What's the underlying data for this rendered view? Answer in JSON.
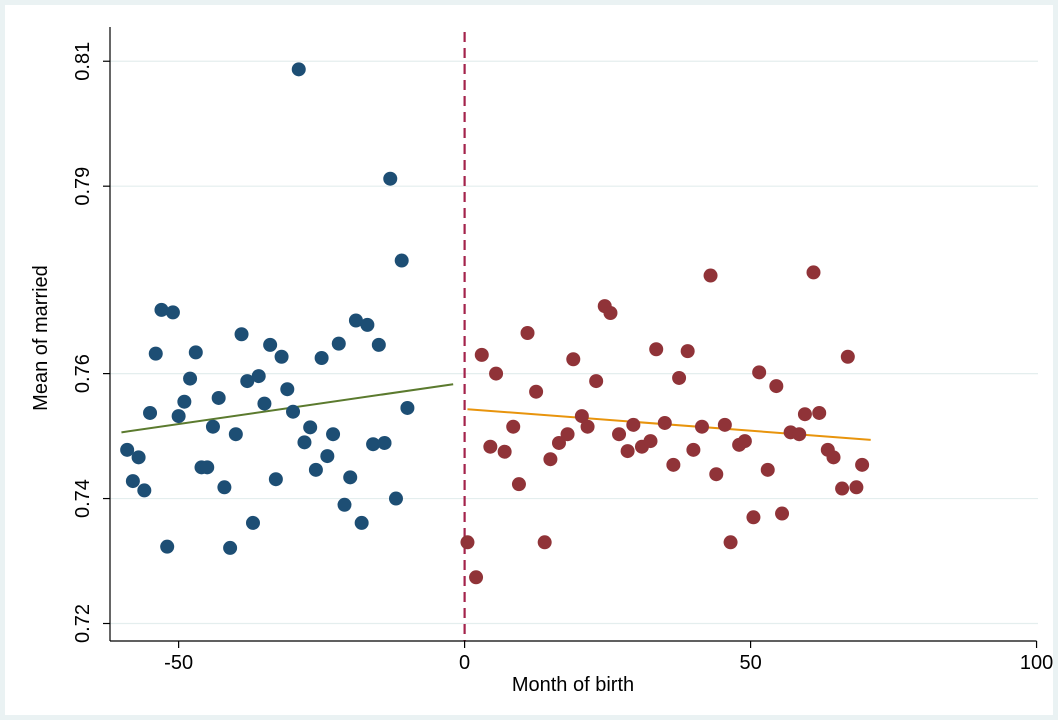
{
  "chart_data": {
    "type": "scatter",
    "title": "",
    "xlabel": "Month of birth",
    "ylabel": "Mean of married",
    "xlim": [
      -62,
      102
    ],
    "ylim": [
      0.7188,
      0.8142
    ],
    "x_ticks": [
      -50,
      0,
      50,
      100
    ],
    "x_tick_labels": [
      "-50",
      "0",
      "50",
      "100"
    ],
    "y_ticks": [
      0.72,
      0.74,
      0.76,
      0.79,
      0.81
    ],
    "y_tick_labels": [
      "0.72",
      "0.74",
      "0.76",
      "0.79",
      "0.81"
    ],
    "grid": true,
    "cutoff": 0,
    "colors": {
      "left_points": "#1d4e74",
      "right_points": "#903338",
      "left_fit": "#5b7a2e",
      "right_fit": "#e8940c",
      "cutoff_line": "#a3234b",
      "grid": "#e4eeee"
    },
    "series": [
      {
        "points": [
          [
            -59,
            0.7478
          ],
          [
            -58,
            0.7428
          ],
          [
            -57,
            0.7466
          ],
          [
            -56,
            0.7413
          ],
          [
            -55,
            0.7537
          ],
          [
            -54,
            0.7632
          ],
          [
            -53,
            0.7702
          ],
          [
            -52,
            0.7323
          ],
          [
            -51,
            0.7698
          ],
          [
            -50,
            0.7532
          ],
          [
            -49,
            0.7555
          ],
          [
            -48,
            0.7592
          ],
          [
            -47,
            0.7634
          ],
          [
            -46,
            0.745
          ],
          [
            -45,
            0.745
          ],
          [
            -44,
            0.7515
          ],
          [
            -43,
            0.7561
          ],
          [
            -42,
            0.7418
          ],
          [
            -41,
            0.7321
          ],
          [
            -40,
            0.7503
          ],
          [
            -39,
            0.7663
          ],
          [
            -38,
            0.7588
          ],
          [
            -37,
            0.7361
          ],
          [
            -36,
            0.7596
          ],
          [
            -35,
            0.7552
          ],
          [
            -34,
            0.7646
          ],
          [
            -33,
            0.7431
          ],
          [
            -32,
            0.7627
          ],
          [
            -31,
            0.7575
          ],
          [
            -30,
            0.7539
          ],
          [
            -29,
            0.8087
          ],
          [
            -28,
            0.749
          ],
          [
            -27,
            0.7514
          ],
          [
            -26,
            0.7446
          ],
          [
            -25,
            0.7625
          ],
          [
            -24,
            0.7468
          ],
          [
            -23,
            0.7503
          ],
          [
            -22,
            0.7648
          ],
          [
            -21,
            0.739
          ],
          [
            -20,
            0.7434
          ],
          [
            -19,
            0.7685
          ],
          [
            -18,
            0.7361
          ],
          [
            -17,
            0.7678
          ],
          [
            -16,
            0.7487
          ],
          [
            -15,
            0.7646
          ],
          [
            -14,
            0.7489
          ],
          [
            -13,
            0.7912
          ],
          [
            -12,
            0.74
          ],
          [
            -11,
            0.7781
          ],
          [
            -10,
            0.7545
          ]
        ]
      },
      {
        "points": [
          [
            0.5,
            0.733
          ],
          [
            2,
            0.7274
          ],
          [
            3,
            0.763
          ],
          [
            4.5,
            0.7483
          ],
          [
            5.5,
            0.76
          ],
          [
            7,
            0.7475
          ],
          [
            8.5,
            0.7515
          ],
          [
            9.5,
            0.7423
          ],
          [
            11,
            0.7665
          ],
          [
            12.5,
            0.7571
          ],
          [
            14,
            0.733
          ],
          [
            15,
            0.7463
          ],
          [
            16.5,
            0.7489
          ],
          [
            18,
            0.7503
          ],
          [
            19,
            0.7623
          ],
          [
            20.5,
            0.7532
          ],
          [
            21.5,
            0.7515
          ],
          [
            23,
            0.7588
          ],
          [
            24.5,
            0.7708
          ],
          [
            25.5,
            0.7697
          ],
          [
            27,
            0.7503
          ],
          [
            28.5,
            0.7476
          ],
          [
            29.5,
            0.7518
          ],
          [
            31,
            0.7483
          ],
          [
            32.5,
            0.7492
          ],
          [
            33.5,
            0.7639
          ],
          [
            35,
            0.7521
          ],
          [
            36.5,
            0.7454
          ],
          [
            37.5,
            0.7593
          ],
          [
            39,
            0.7636
          ],
          [
            40,
            0.7478
          ],
          [
            41.5,
            0.7515
          ],
          [
            43,
            0.7757
          ],
          [
            44,
            0.7439
          ],
          [
            45.5,
            0.7518
          ],
          [
            46.5,
            0.733
          ],
          [
            48,
            0.7486
          ],
          [
            49,
            0.7492
          ],
          [
            50.5,
            0.737
          ],
          [
            51.5,
            0.7602
          ],
          [
            53,
            0.7446
          ],
          [
            54.5,
            0.758
          ],
          [
            55.5,
            0.7376
          ],
          [
            57,
            0.7506
          ],
          [
            58.5,
            0.7503
          ],
          [
            59.5,
            0.7535
          ],
          [
            61,
            0.7762
          ],
          [
            62,
            0.7537
          ],
          [
            63.5,
            0.7478
          ],
          [
            64.5,
            0.7466
          ],
          [
            66,
            0.7416
          ],
          [
            67,
            0.7627
          ],
          [
            68.5,
            0.7418
          ],
          [
            69.5,
            0.7454
          ]
        ]
      }
    ],
    "fit_lines": [
      {
        "x": [
          -60,
          -2
        ],
        "y": [
          0.7506,
          0.7583
        ]
      },
      {
        "x": [
          0.5,
          71
        ],
        "y": [
          0.7543,
          0.7494
        ]
      }
    ]
  }
}
